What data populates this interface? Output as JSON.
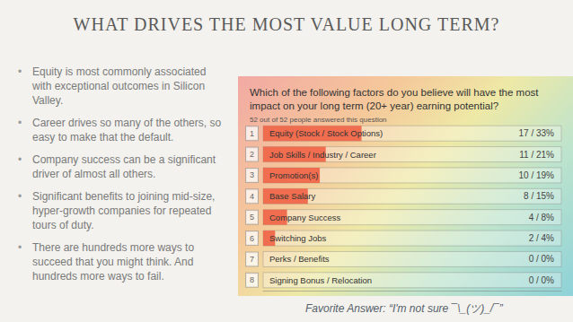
{
  "slide": {
    "title": "WHAT DRIVES THE MOST VALUE LONG TERM?",
    "bullets": [
      "Equity is most commonly associated with exceptional outcomes in Silicon Valley.",
      "Career drives so many of the others, so easy to make that the default.",
      "Company success can be a significant driver of almost all others.",
      "Significant benefits to joining mid-size, hyper-growth companies for repeated tours of duty.",
      "There are hundreds more ways to succeed that you might think. And hundreds more ways to fail."
    ],
    "caption": "Favorite Answer: “I'm not sure ¯\\_(ツ)_/¯”"
  },
  "chart_data": {
    "type": "bar",
    "orientation": "horizontal",
    "title": "Which of the following factors do you believe will have the most impact on your long term (20+ year) earning potential?",
    "subtitle": "52 out of 52 people answered this question",
    "ranks": [
      1,
      2,
      3,
      4,
      5,
      6,
      7,
      8
    ],
    "categories": [
      "Equity (Stock / Stock Options)",
      "Job Skills / Industry / Career",
      "Promotion(s)",
      "Base Salary",
      "Company Success",
      "Switching Jobs",
      "Perks / Benefits",
      "Signing Bonus / Relocation"
    ],
    "values": [
      33,
      21,
      19,
      15,
      8,
      4,
      0,
      0
    ],
    "value_labels": [
      "17 / 33%",
      "11 / 21%",
      "10 / 19%",
      "8 / 15%",
      "4 / 8%",
      "2 / 4%",
      "0 / 0%",
      "0 / 0%"
    ],
    "color": "#ef5a3c",
    "xlim": [
      0,
      100
    ],
    "grid": false,
    "tick_labels": false,
    "data_labels": true
  }
}
